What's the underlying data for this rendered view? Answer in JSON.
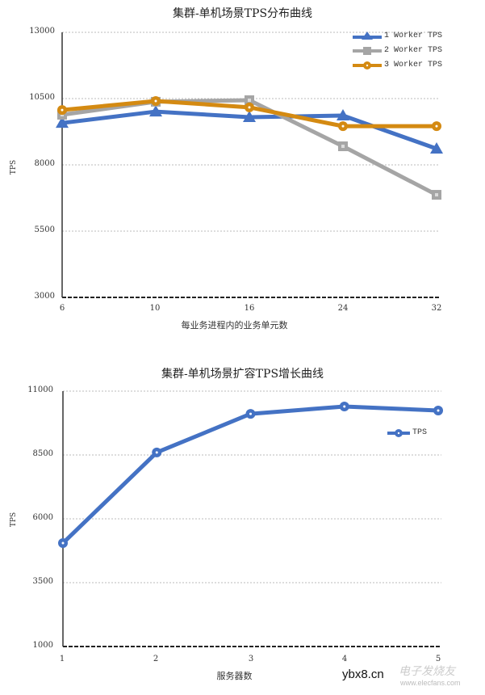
{
  "chart_data": [
    {
      "type": "line",
      "title": "集群-单机场景TPS分布曲线",
      "xlabel": "每业务进程内的业务单元数",
      "ylabel": "TPS",
      "categories": [
        "6",
        "10",
        "16",
        "24",
        "32"
      ],
      "yticks": [
        "13000",
        "10500",
        "8000",
        "5500",
        "3000"
      ],
      "ylim": [
        3000,
        13000
      ],
      "grid": true,
      "legend_position": "top-right",
      "series": [
        {
          "name": "1 Worker TPS",
          "color": "#4472c4",
          "marker": "triangle",
          "values": [
            9580,
            10010,
            9800,
            9860,
            8610
          ]
        },
        {
          "name": "2 Worker TPS",
          "color": "#a5a5a5",
          "marker": "square",
          "values": [
            9890,
            10380,
            10440,
            8700,
            6870
          ]
        },
        {
          "name": "3 Worker TPS",
          "color": "#d48a12",
          "marker": "circle",
          "values": [
            10070,
            10410,
            10170,
            9460,
            9460
          ]
        }
      ]
    },
    {
      "type": "line",
      "title": "集群-单机场景扩容TPS增长曲线",
      "xlabel": "服务器数",
      "ylabel": "TPS",
      "categories": [
        "1",
        "2",
        "3",
        "4",
        "5"
      ],
      "yticks": [
        "11000",
        "8500",
        "6000",
        "3500",
        "1000"
      ],
      "ylim": [
        1000,
        11000
      ],
      "grid": true,
      "legend_position": "right",
      "series": [
        {
          "name": "TPS",
          "color": "#4472c4",
          "marker": "circle",
          "values": [
            5050,
            8600,
            10110,
            10400,
            10240
          ]
        }
      ]
    }
  ],
  "watermark": {
    "site": "ybx8.cn",
    "brand": "电子发烧友",
    "url": "www.elecfans.com"
  }
}
